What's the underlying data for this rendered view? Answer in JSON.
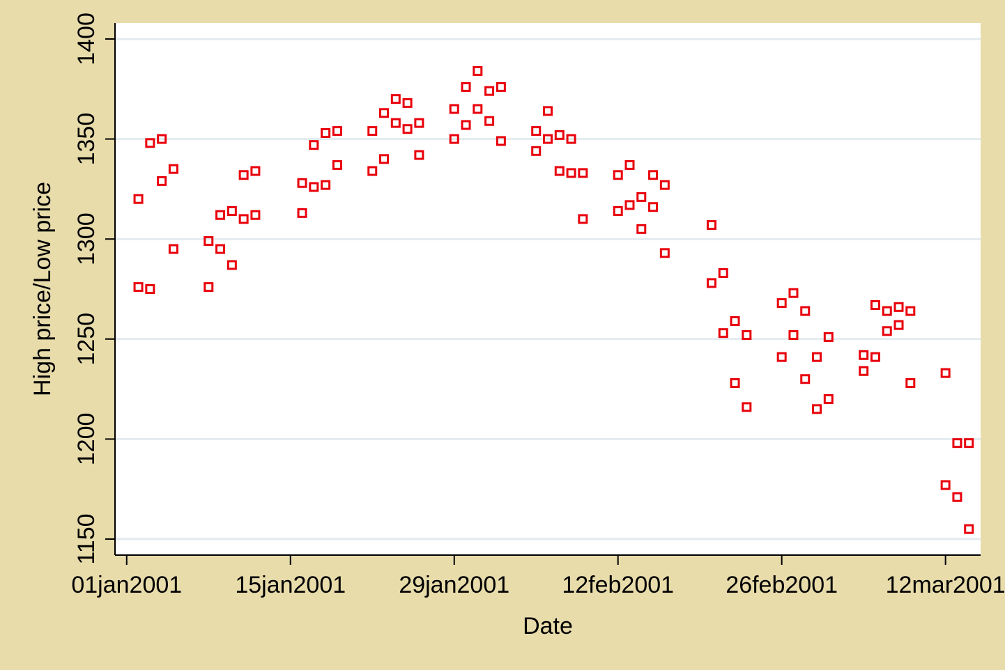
{
  "chart_data": {
    "type": "scatter",
    "x_label": "Date",
    "y_label": "High price/Low price",
    "x": [
      "2001-01-02",
      "2001-01-03",
      "2001-01-04",
      "2001-01-05",
      "2001-01-08",
      "2001-01-09",
      "2001-01-10",
      "2001-01-11",
      "2001-01-12",
      "2001-01-16",
      "2001-01-17",
      "2001-01-18",
      "2001-01-19",
      "2001-01-22",
      "2001-01-23",
      "2001-01-24",
      "2001-01-25",
      "2001-01-26",
      "2001-01-29",
      "2001-01-30",
      "2001-01-31",
      "2001-02-01",
      "2001-02-02",
      "2001-02-05",
      "2001-02-06",
      "2001-02-07",
      "2001-02-08",
      "2001-02-09",
      "2001-02-12",
      "2001-02-13",
      "2001-02-14",
      "2001-02-15",
      "2001-02-16",
      "2001-02-20",
      "2001-02-21",
      "2001-02-22",
      "2001-02-23",
      "2001-02-26",
      "2001-02-27",
      "2001-02-28",
      "2001-03-01",
      "2001-03-02",
      "2001-03-05",
      "2001-03-06",
      "2001-03-07",
      "2001-03-08",
      "2001-03-09",
      "2001-03-12",
      "2001-03-13",
      "2001-03-14"
    ],
    "series": [
      {
        "color": "#e8000b",
        "values": [
          1320,
          1348,
          1350,
          1335,
          1299,
          1312,
          1314,
          1332,
          1334,
          1328,
          1347,
          1353,
          1354,
          1354,
          1363,
          1370,
          1368,
          1358,
          1365,
          1376,
          1384,
          1374,
          1376,
          1354,
          1364,
          1352,
          1350,
          1333,
          1332,
          1337,
          1321,
          1332,
          1327,
          1307,
          1283,
          1259,
          1252,
          1268,
          1273,
          1264,
          1241,
          1251,
          1242,
          1267,
          1264,
          1266,
          1264,
          1233,
          1198,
          1198
        ]
      },
      {
        "color": "#e8000b",
        "values": [
          1276,
          1275,
          1329,
          1295,
          1276,
          1295,
          1287,
          1310,
          1312,
          1313,
          1326,
          1327,
          1337,
          1334,
          1340,
          1358,
          1355,
          1342,
          1350,
          1357,
          1365,
          1359,
          1349,
          1344,
          1350,
          1334,
          1333,
          1310,
          1314,
          1317,
          1305,
          1316,
          1293,
          1278,
          1253,
          1228,
          1216,
          1241,
          1252,
          1230,
          1215,
          1220,
          1234,
          1241,
          1254,
          1257,
          1228,
          1177,
          1171,
          1155
        ]
      }
    ],
    "xlim": [
      "2000-12-31",
      "2001-03-15"
    ],
    "xticks": [
      {
        "value": "2001-01-01",
        "label": "01jan2001"
      },
      {
        "value": "2001-01-15",
        "label": "15jan2001"
      },
      {
        "value": "2001-01-29",
        "label": "29jan2001"
      },
      {
        "value": "2001-02-12",
        "label": "12feb2001"
      },
      {
        "value": "2001-02-26",
        "label": "26feb2001"
      },
      {
        "value": "2001-03-12",
        "label": "12mar2001"
      }
    ],
    "ylim": [
      1142,
      1408
    ],
    "yticks": [
      1150,
      1200,
      1250,
      1300,
      1350,
      1400
    ],
    "grid": true
  }
}
